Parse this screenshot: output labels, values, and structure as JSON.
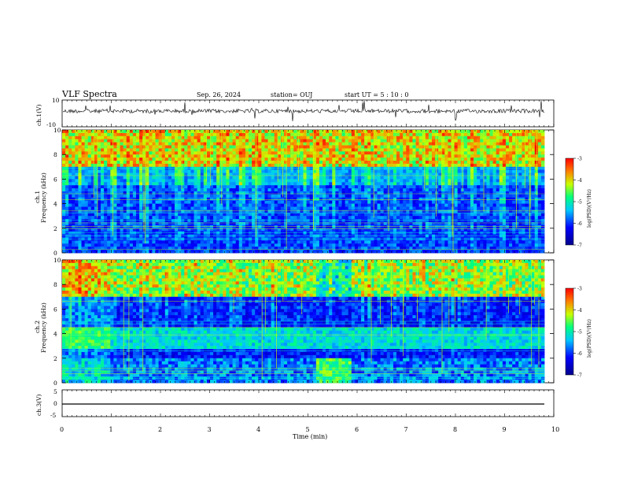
{
  "header": {
    "title": "VLF Spectra",
    "date": "Sep. 26, 2024",
    "station": "station= OUJ",
    "start_ut": "start UT =  5 : 10 : 0"
  },
  "colors": {
    "background": "#ffffff",
    "axis": "#000000",
    "spectro_low": "#00008c",
    "spectro_high": "#ff0000"
  },
  "chart_data": [
    {
      "type": "line",
      "panel": "ch1-waveform",
      "ylabel": "ch.1(V)",
      "ylim": [
        -10,
        10
      ],
      "yticks": [
        "10",
        "-10"
      ],
      "xlim": [
        0,
        10
      ],
      "description_of_trace": "noisy baseline near 0 with spikes",
      "series": [
        {
          "values_mean": 0,
          "noise_amplitude": 1.5
        }
      ]
    },
    {
      "type": "heatmap",
      "panel": "ch1-spectrogram",
      "ylabel": "Frequency (kHz)",
      "channel_label": "ch.1",
      "ylim": [
        0,
        10
      ],
      "yticks": [
        "0",
        "2",
        "4",
        "6",
        "8",
        "10"
      ],
      "xlim": [
        0,
        9.8
      ],
      "colorbar": {
        "label": "log(PSD)(V²/Hz)",
        "range": [
          -7,
          -3
        ],
        "ticks": [
          "-3",
          "-4",
          "-5",
          "-6",
          "-7"
        ]
      }
    },
    {
      "type": "heatmap",
      "panel": "ch2-spectrogram",
      "ylabel": "Frequency (kHz)",
      "channel_label": "ch.2",
      "ylim": [
        0,
        10
      ],
      "yticks": [
        "0",
        "2",
        "4",
        "6",
        "8",
        "10"
      ],
      "xlim": [
        0,
        9.8
      ],
      "colorbar": {
        "label": "log(PSD)(V²/Hz)",
        "range": [
          -7,
          -3
        ],
        "ticks": [
          "-3",
          "-4",
          "-5",
          "-6",
          "-7"
        ]
      }
    },
    {
      "type": "line",
      "panel": "ch3-waveform",
      "ylabel": "ch.3(V)",
      "ylim": [
        -5,
        5
      ],
      "yticks": [
        "5",
        "0",
        "-5"
      ],
      "xlim": [
        0,
        9.8
      ],
      "series": [
        {
          "values_mean": -1.5,
          "noise_amplitude": 0
        }
      ]
    }
  ],
  "xaxis": {
    "label": "Time (min)",
    "ticks": [
      "0",
      "1",
      "2",
      "3",
      "4",
      "5",
      "6",
      "7",
      "8",
      "9",
      "10"
    ]
  }
}
